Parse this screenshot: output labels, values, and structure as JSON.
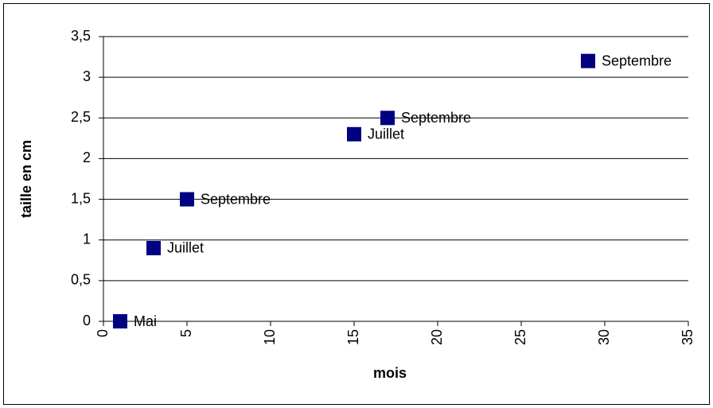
{
  "chart_data": {
    "type": "scatter",
    "x_label": "mois",
    "y_label": "taille en cm",
    "x": [
      1,
      3,
      5,
      15,
      17,
      29
    ],
    "values": [
      0,
      0.9,
      1.5,
      2.3,
      2.5,
      3.2
    ],
    "point_labels": [
      "Mai",
      "Juillet",
      "Septembre",
      "Juillet",
      "Septembre",
      "Septembre"
    ],
    "color": "#000080",
    "xlim": [
      0,
      35
    ],
    "xticks": [
      0,
      5,
      10,
      15,
      20,
      25,
      30,
      35
    ],
    "ylim": [
      0,
      3.5
    ],
    "yticks": [
      0,
      {
        "value": 0.5,
        "label": "0,5"
      },
      1,
      {
        "value": 1.5,
        "label": "1,5"
      },
      2,
      {
        "value": 2.5,
        "label": "2,5"
      },
      3,
      {
        "value": 3.5,
        "label": "3,5"
      }
    ],
    "grid": true
  }
}
